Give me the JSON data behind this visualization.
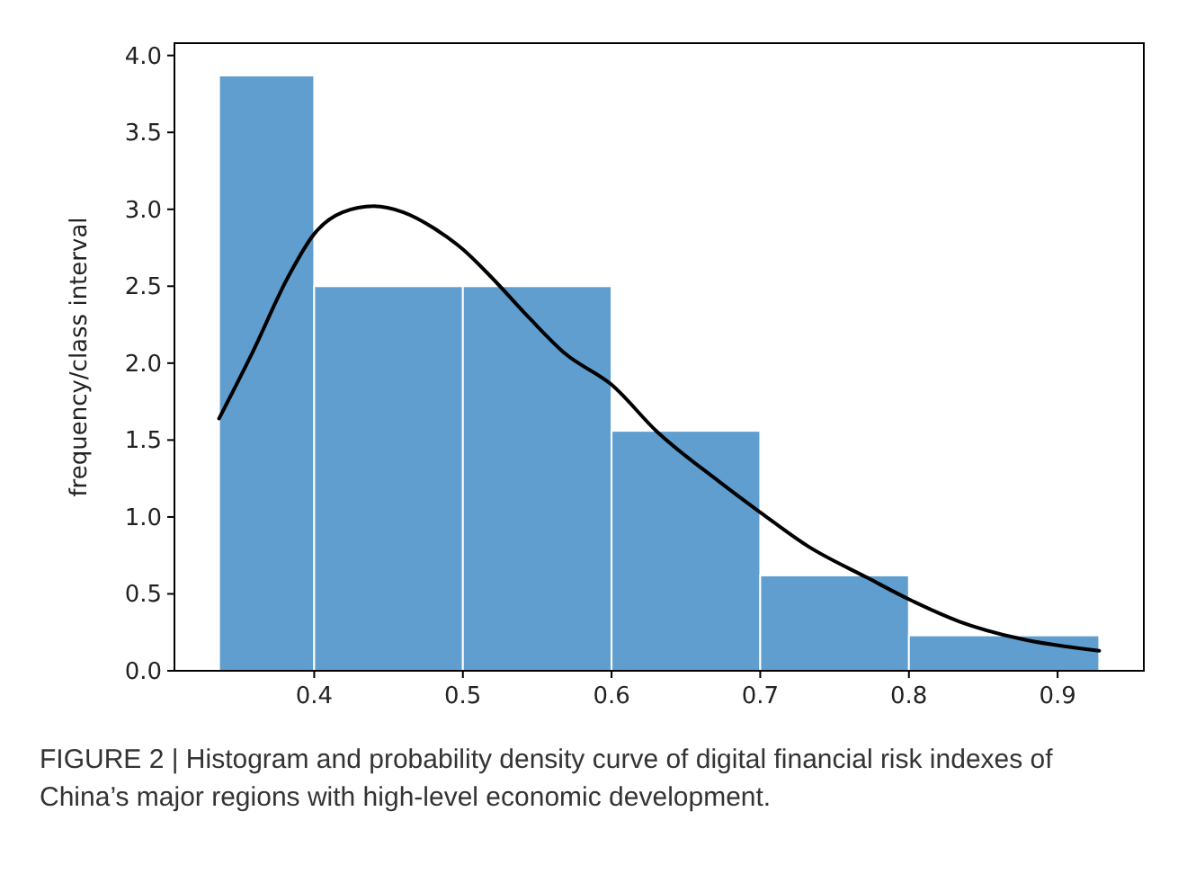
{
  "chart_data": {
    "type": "histogram",
    "ylabel": "frequency/class interval",
    "bins": [
      0.336,
      0.4,
      0.5,
      0.6,
      0.7,
      0.8,
      0.928
    ],
    "values": [
      3.87,
      2.5,
      2.5,
      1.56,
      0.62,
      0.23
    ],
    "color": "#5f9ecf",
    "series": [
      {
        "type": "line",
        "color": "#000000",
        "x": [
          0.336,
          0.358,
          0.383,
          0.4,
          0.419,
          0.44,
          0.46,
          0.48,
          0.5,
          0.52,
          0.545,
          0.569,
          0.6,
          0.631,
          0.671,
          0.7,
          0.732,
          0.773,
          0.801,
          0.834,
          0.874,
          0.928
        ],
        "values": [
          1.64,
          2.06,
          2.57,
          2.84,
          2.98,
          3.02,
          2.98,
          2.88,
          2.74,
          2.55,
          2.29,
          2.06,
          1.86,
          1.55,
          1.24,
          1.03,
          0.81,
          0.6,
          0.46,
          0.32,
          0.21,
          0.13
        ]
      }
    ],
    "xlim": [
      0.306,
      0.958
    ],
    "xticks": [
      0.4,
      0.5,
      0.6,
      0.7,
      0.8,
      0.9
    ],
    "ylim": [
      0,
      4.08
    ],
    "yticks": [
      {
        "value": 0,
        "label": "0.0"
      },
      0.5,
      {
        "value": 1,
        "label": "1.0"
      },
      1.5,
      {
        "value": 2,
        "label": "2.0"
      },
      2.5,
      {
        "value": 3,
        "label": "3.0"
      },
      3.5,
      {
        "value": 4,
        "label": "4.0"
      }
    ],
    "annotations": [
      "FIGURE 2 | Histogram and probability density curve of digital financial risk indexes of China’s major regions with high-level economic development."
    ]
  }
}
